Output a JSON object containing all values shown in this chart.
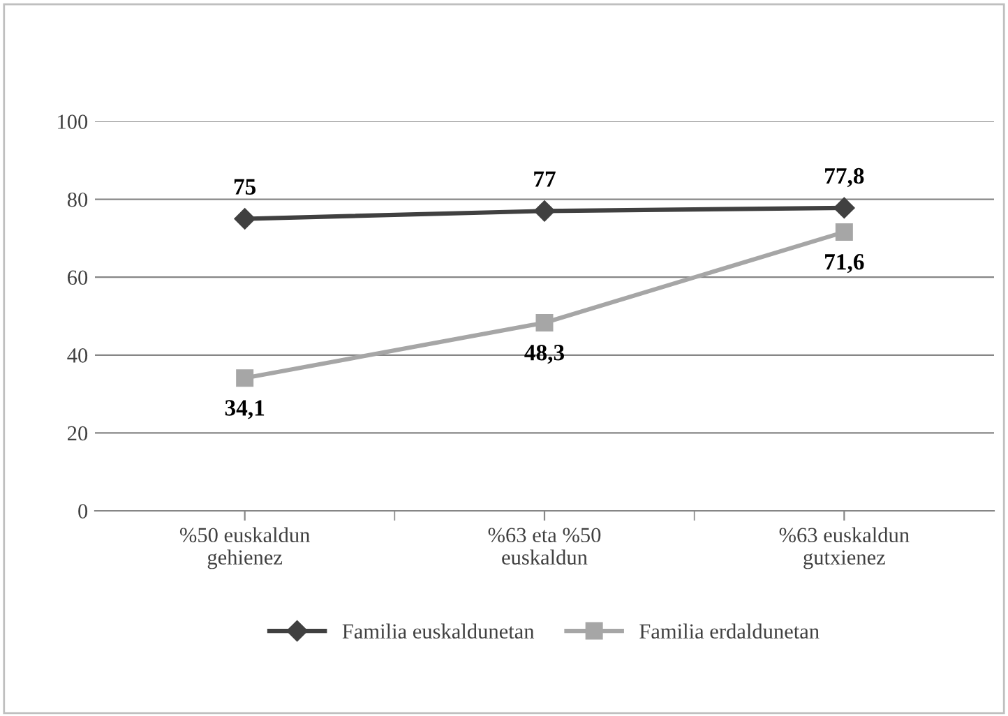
{
  "chart_data": {
    "type": "line",
    "categories": [
      "%50 euskaldun\ngehienez",
      "%63 eta %50\neuskaldun",
      "%63 euskaldun\ngutxienez"
    ],
    "series": [
      {
        "name": "Familia euskaldunetan",
        "color": "#404040",
        "marker": "diamond",
        "values": [
          75,
          77,
          77.8
        ],
        "value_labels": [
          "75",
          "77",
          "77,8"
        ]
      },
      {
        "name": "Familia erdaldunetan",
        "color": "#a6a6a6",
        "marker": "square",
        "values": [
          34.1,
          48.3,
          71.6
        ],
        "value_labels": [
          "34,1",
          "48,3",
          "71,6"
        ]
      }
    ],
    "ylim": [
      0,
      100
    ],
    "yticks": [
      0,
      20,
      40,
      60,
      80,
      100
    ],
    "grid": "y",
    "legend": "bottom"
  }
}
